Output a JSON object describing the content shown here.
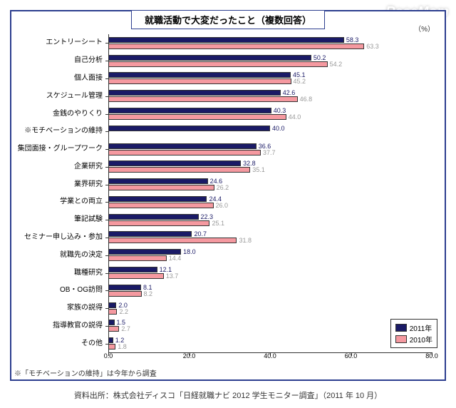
{
  "watermark": "ReseMom",
  "title": "就職活動で大変だったこと（複数回答）",
  "unit_label": "（%）",
  "xaxis": {
    "min": 0,
    "max": 80,
    "step": 20,
    "ticks": [
      0.0,
      20.0,
      40.0,
      60.0,
      80.0
    ]
  },
  "colors": {
    "y2011": "#1a1a66",
    "y2010": "#f599a0",
    "text2011": "#1a1a66",
    "text2010": "#9a9a9a",
    "frame": "#2c3e8f"
  },
  "categories": [
    {
      "label": "エントリーシート",
      "v2011": 58.3,
      "v2010": 63.3
    },
    {
      "label": "自己分析",
      "v2011": 50.2,
      "v2010": 54.2
    },
    {
      "label": "個人面接",
      "v2011": 45.1,
      "v2010": 45.2
    },
    {
      "label": "スケジュール管理",
      "v2011": 42.6,
      "v2010": 46.8
    },
    {
      "label": "金銭のやりくり",
      "v2011": 40.3,
      "v2010": 44.0
    },
    {
      "label": "※モチベーションの維持",
      "v2011": 40.0,
      "v2010": null
    },
    {
      "label": "集団面接・グループワーク",
      "v2011": 36.6,
      "v2010": 37.7
    },
    {
      "label": "企業研究",
      "v2011": 32.8,
      "v2010": 35.1
    },
    {
      "label": "業界研究",
      "v2011": 24.6,
      "v2010": 26.2
    },
    {
      "label": "学業との両立",
      "v2011": 24.4,
      "v2010": 26.0
    },
    {
      "label": "筆記試験",
      "v2011": 22.3,
      "v2010": 25.1
    },
    {
      "label": "セミナー申し込み・参加",
      "v2011": 20.7,
      "v2010": 31.8
    },
    {
      "label": "就職先の決定",
      "v2011": 18.0,
      "v2010": 14.4
    },
    {
      "label": "職種研究",
      "v2011": 12.1,
      "v2010": 13.7
    },
    {
      "label": "OB・OG訪問",
      "v2011": 8.1,
      "v2010": 8.2
    },
    {
      "label": "家族の説得",
      "v2011": 2.0,
      "v2010": 2.2
    },
    {
      "label": "指導教官の説得",
      "v2011": 1.5,
      "v2010": 2.7
    },
    {
      "label": "その他",
      "v2011": 1.2,
      "v2010": 1.8
    }
  ],
  "legend": {
    "y2011": "2011年",
    "y2010": "2010年"
  },
  "footnote": "※「モチベーションの維持」は今年から調査",
  "source": "資料出所：株式会社ディスコ「日経就職ナビ 2012 学生モニター調査」（2011 年 10 月）"
}
